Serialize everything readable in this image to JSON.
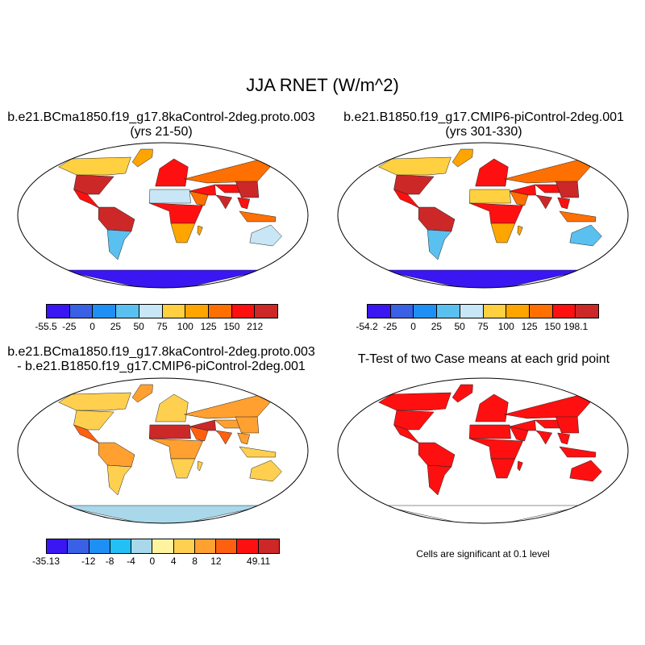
{
  "main_title": "JJA RNET (W/m^2)",
  "panels": [
    {
      "title_line1": "b.e21.BCma1850.f19_g17.8kaControl-2deg.proto.003",
      "title_line2": "(yrs 21-50)",
      "colorbar": {
        "labels": [
          "-55.5",
          "-25",
          "0",
          "25",
          "50",
          "75",
          "100",
          "125",
          "150",
          "212"
        ],
        "colors": [
          "#3a16f2",
          "#3a60e6",
          "#1e90f5",
          "#5ac0f0",
          "#c8e6f5",
          "#ffd040",
          "#ffa500",
          "#ff7000",
          "#ff1010",
          "#cc2828"
        ]
      }
    },
    {
      "title_line1": "b.e21.B1850.f19_g17.CMIP6-piControl-2deg.001",
      "title_line2": "(yrs 301-330)",
      "colorbar": {
        "labels": [
          "-54.2",
          "-25",
          "0",
          "25",
          "50",
          "75",
          "100",
          "125",
          "150",
          "198.1"
        ],
        "colors": [
          "#3a16f2",
          "#3a60e6",
          "#1e90f5",
          "#5ac0f0",
          "#c8e6f5",
          "#ffd040",
          "#ffa500",
          "#ff7000",
          "#ff1010",
          "#cc2828"
        ]
      }
    },
    {
      "title_line1": "b.e21.BCma1850.f19_g17.8kaControl-2deg.proto.003",
      "title_line2": "- b.e21.B1850.f19_g17.CMIP6-piControl-2deg.001",
      "colorbar": {
        "labels": [
          "-35.13",
          "-12",
          "-8",
          "-4",
          "0",
          "4",
          "8",
          "12",
          "49.11"
        ],
        "label_slots": [
          0,
          2,
          3,
          4,
          5,
          6,
          7,
          8,
          10
        ],
        "colors": [
          "#3a16f2",
          "#3a60e6",
          "#1e90f5",
          "#22c0f5",
          "#a8d8ea",
          "#fff3a0",
          "#ffd050",
          "#ffa030",
          "#ff6010",
          "#ff1010",
          "#cc2828"
        ]
      }
    },
    {
      "title_line1": "T-Test of two Case means at each grid point",
      "note": "Cells are significant at 0.1 level"
    }
  ]
}
